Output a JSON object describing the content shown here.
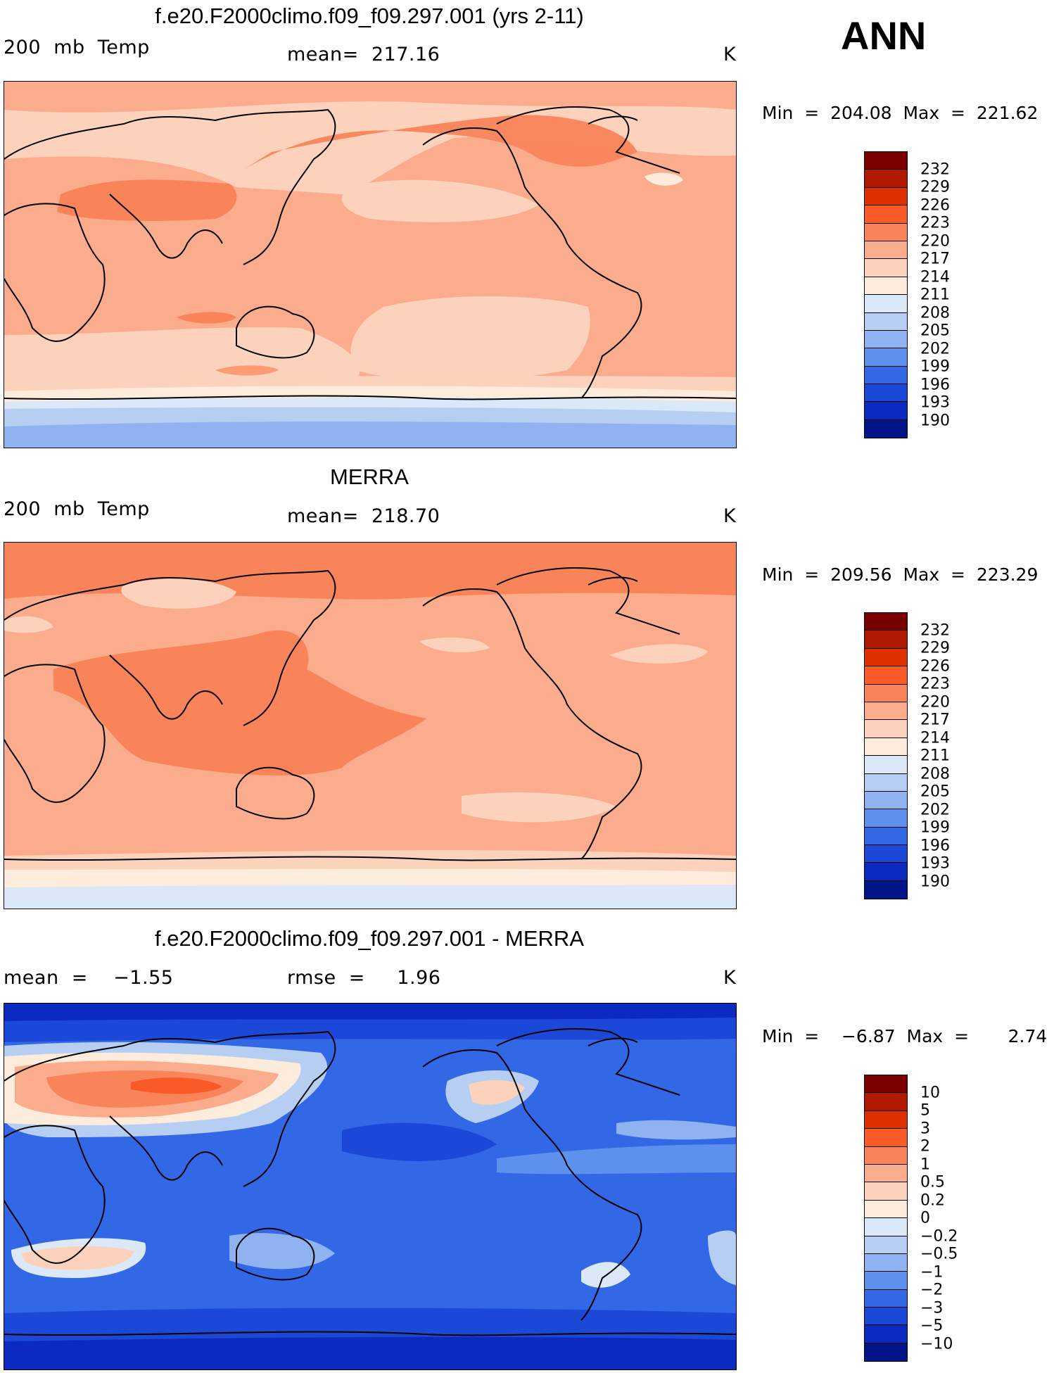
{
  "season": "ANN",
  "panels": [
    {
      "title": "f.e20.F2000climo.f09_f09.297.001 (yrs 2-11)",
      "left_label": "200  mb  Temp",
      "center_label": "mean=  217.16",
      "units": "K",
      "minmax": "Min  =  204.08  Max  =  221.62",
      "colorbar_labels": [
        "232",
        "229",
        "226",
        "223",
        "220",
        "217",
        "214",
        "211",
        "208",
        "205",
        "202",
        "199",
        "196",
        "193",
        "190"
      ]
    },
    {
      "title": "MERRA",
      "left_label": "200  mb  Temp",
      "center_label": "mean=  218.70",
      "units": "K",
      "minmax": "Min  =  209.56  Max  =  223.29",
      "colorbar_labels": [
        "232",
        "229",
        "226",
        "223",
        "220",
        "217",
        "214",
        "211",
        "208",
        "205",
        "202",
        "199",
        "196",
        "193",
        "190"
      ]
    },
    {
      "title": "f.e20.F2000climo.f09_f09.297.001 - MERRA",
      "left_label": "mean  =    −1.55",
      "center_label": "rmse  =     1.96",
      "units": "K",
      "minmax": "Min  =    −6.87  Max  =       2.74",
      "colorbar_labels": [
        "10",
        "5",
        "3",
        "2",
        "1",
        "0.5",
        "0.2",
        "0",
        "−0.2",
        "−0.5",
        "−1",
        "−2",
        "−3",
        "−5",
        "−10"
      ]
    }
  ],
  "colors": {
    "colorbar": [
      "#7a0000",
      "#b01800",
      "#e03000",
      "#fa5a28",
      "#f9845a",
      "#fbac8c",
      "#fdd2bc",
      "#fdebdc",
      "#dbe8f7",
      "#b7cef3",
      "#8fb3f0",
      "#5e91ee",
      "#3268e6",
      "#1c48d8",
      "#0d2ac0",
      "#011488"
    ]
  }
}
